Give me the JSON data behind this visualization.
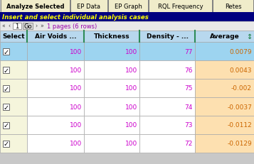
{
  "tabs": [
    "Analyze Selected",
    "EP Data",
    "EP Graph",
    "RQL Frequency",
    "Retes"
  ],
  "nav_text": "1 pages (6 rows)",
  "instruction": "Insert and select individual analysis cases",
  "columns": [
    "Select",
    "Air Voids ...",
    "Thickness",
    "Density - ...",
    "Average"
  ],
  "rows": [
    [
      true,
      100,
      100,
      77,
      "0.0079"
    ],
    [
      true,
      100,
      100,
      76,
      "0.0043"
    ],
    [
      true,
      100,
      100,
      75,
      "-0.002"
    ],
    [
      true,
      100,
      100,
      74,
      "-0.0037"
    ],
    [
      true,
      100,
      100,
      73,
      "-0.0112"
    ],
    [
      true,
      100,
      100,
      72,
      "-0.0129"
    ]
  ],
  "tab_bg": "#f0ecca",
  "tab_border": "#808080",
  "instruction_bg": "#000080",
  "instruction_fg": "#ffff00",
  "nav_bg": "#e8e8e8",
  "col_header_bg": "#b8d8ee",
  "col_header_border_left": "#2e8b57",
  "col_border": "#aaaaaa",
  "row0_data_bg": "#9dd4f0",
  "row0_avg_bg": "#9dd4f0",
  "row_other_data_bg": "#ffffff",
  "row_select_bg": "#f5f5dc",
  "row_avg_bg": "#fde0b0",
  "data_color": "#cc00cc",
  "avg_color": "#cc6600",
  "nav_text_color": "#9900aa",
  "figsize": [
    3.57,
    2.32
  ],
  "dpi": 100
}
